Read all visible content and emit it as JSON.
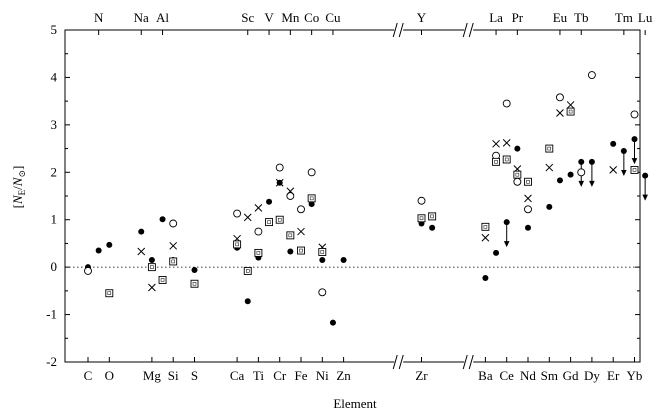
{
  "chart_data": {
    "type": "scatter",
    "title": "",
    "xlabel": "Element",
    "ylabel": "[N_E/N_⊙]",
    "ylabel_parts": {
      "N": "N",
      "E": "E",
      "slash": "/",
      "sun": "⊙"
    },
    "ylim": [
      -2,
      5
    ],
    "yticks": [
      -2,
      -1,
      0,
      1,
      2,
      3,
      4,
      5
    ],
    "reference_line_y": 0,
    "grid": false,
    "legend": "none",
    "axis_break_after": 14,
    "bottom_labels": [
      {
        "pos": 0,
        "label": "C"
      },
      {
        "pos": 1,
        "label": "O"
      },
      {
        "pos": 3,
        "label": "Mg"
      },
      {
        "pos": 4,
        "label": "Si"
      },
      {
        "pos": 5,
        "label": "S"
      },
      {
        "pos": 7,
        "label": "Ca"
      },
      {
        "pos": 8,
        "label": "Ti"
      },
      {
        "pos": 9,
        "label": "Cr"
      },
      {
        "pos": 10,
        "label": "Fe"
      },
      {
        "pos": 11,
        "label": "Ni"
      },
      {
        "pos": 12,
        "label": "Zn"
      },
      {
        "pos": 15,
        "label": "Zr"
      },
      {
        "pos": 18,
        "label": "Ba"
      },
      {
        "pos": 19,
        "label": "Ce"
      },
      {
        "pos": 20,
        "label": "Nd"
      },
      {
        "pos": 21,
        "label": "Sm"
      },
      {
        "pos": 22,
        "label": "Gd"
      },
      {
        "pos": 23,
        "label": "Dy"
      },
      {
        "pos": 24,
        "label": "Er"
      },
      {
        "pos": 25,
        "label": "Yb"
      }
    ],
    "top_labels": [
      {
        "pos": 0.5,
        "label": "N"
      },
      {
        "pos": 2.5,
        "label": "Na"
      },
      {
        "pos": 3.5,
        "label": "Al"
      },
      {
        "pos": 7.5,
        "label": "Sc"
      },
      {
        "pos": 8.5,
        "label": "V"
      },
      {
        "pos": 9.5,
        "label": "Mn"
      },
      {
        "pos": 10.5,
        "label": "Co"
      },
      {
        "pos": 11.5,
        "label": "Cu"
      },
      {
        "pos": 15,
        "label": "Y"
      },
      {
        "pos": 18.5,
        "label": "La"
      },
      {
        "pos": 19.5,
        "label": "Pr"
      },
      {
        "pos": 21.5,
        "label": "Eu"
      },
      {
        "pos": 22.5,
        "label": "Tb"
      },
      {
        "pos": 24.5,
        "label": "Tm"
      },
      {
        "pos": 25.5,
        "label": "Lu"
      }
    ],
    "series": [
      {
        "marker": "filled-circle",
        "points": [
          {
            "x": 0,
            "y": 0.0
          },
          {
            "x": 0.5,
            "y": 0.35
          },
          {
            "x": 1,
            "y": 0.47
          },
          {
            "x": 2.5,
            "y": 0.75
          },
          {
            "x": 3,
            "y": 0.15
          },
          {
            "x": 3.5,
            "y": 1.01
          },
          {
            "x": 4,
            "y": 0.15
          },
          {
            "x": 5,
            "y": -0.06
          },
          {
            "x": 7,
            "y": 0.41
          },
          {
            "x": 7.5,
            "y": -0.72
          },
          {
            "x": 8,
            "y": 0.2
          },
          {
            "x": 8.5,
            "y": 1.38
          },
          {
            "x": 9,
            "y": 1.78
          },
          {
            "x": 9.5,
            "y": 0.33
          },
          {
            "x": 10,
            "y": 0.33
          },
          {
            "x": 10.5,
            "y": 1.33
          },
          {
            "x": 11,
            "y": 0.15
          },
          {
            "x": 11.5,
            "y": -1.17
          },
          {
            "x": 12,
            "y": 0.15
          },
          {
            "x": 15,
            "y": 0.92
          },
          {
            "x": 15.5,
            "y": 0.83
          },
          {
            "x": 18,
            "y": -0.23
          },
          {
            "x": 18.5,
            "y": 0.3
          },
          {
            "x": 19,
            "y": 0.95,
            "upper_limit": true
          },
          {
            "x": 19.5,
            "y": 2.5
          },
          {
            "x": 20,
            "y": 0.83
          },
          {
            "x": 21,
            "y": 1.27
          },
          {
            "x": 21.5,
            "y": 1.83
          },
          {
            "x": 22,
            "y": 1.95
          },
          {
            "x": 22.5,
            "y": 2.22,
            "upper_limit": true
          },
          {
            "x": 23,
            "y": 2.22,
            "upper_limit": true
          },
          {
            "x": 24,
            "y": 2.6
          },
          {
            "x": 24.5,
            "y": 2.45,
            "upper_limit": true
          },
          {
            "x": 25,
            "y": 2.7,
            "upper_limit": true
          },
          {
            "x": 25.5,
            "y": 1.93,
            "upper_limit": true
          }
        ]
      },
      {
        "marker": "open-circle",
        "points": [
          {
            "x": 0,
            "y": -0.08
          },
          {
            "x": 4,
            "y": 0.92
          },
          {
            "x": 7,
            "y": 1.13
          },
          {
            "x": 8,
            "y": 0.75
          },
          {
            "x": 9,
            "y": 2.1
          },
          {
            "x": 9.5,
            "y": 1.5
          },
          {
            "x": 10,
            "y": 1.22
          },
          {
            "x": 10.5,
            "y": 2.0
          },
          {
            "x": 11,
            "y": -0.53
          },
          {
            "x": 15,
            "y": 1.4
          },
          {
            "x": 18.5,
            "y": 2.35
          },
          {
            "x": 19,
            "y": 3.45
          },
          {
            "x": 19.5,
            "y": 1.8
          },
          {
            "x": 20,
            "y": 1.22
          },
          {
            "x": 21.5,
            "y": 3.58
          },
          {
            "x": 22.5,
            "y": 2.0
          },
          {
            "x": 23,
            "y": 4.05
          },
          {
            "x": 25,
            "y": 3.22
          }
        ]
      },
      {
        "marker": "cross",
        "points": [
          {
            "x": 2.5,
            "y": 0.33
          },
          {
            "x": 3,
            "y": -0.43
          },
          {
            "x": 4,
            "y": 0.45
          },
          {
            "x": 7,
            "y": 0.6
          },
          {
            "x": 7.5,
            "y": 1.05
          },
          {
            "x": 8,
            "y": 1.25
          },
          {
            "x": 9,
            "y": 1.78
          },
          {
            "x": 9.5,
            "y": 1.6
          },
          {
            "x": 10,
            "y": 0.75
          },
          {
            "x": 11,
            "y": 0.42
          },
          {
            "x": 15.5,
            "y": 1.08
          },
          {
            "x": 18,
            "y": 0.62
          },
          {
            "x": 18.5,
            "y": 2.6
          },
          {
            "x": 19,
            "y": 2.62
          },
          {
            "x": 19.5,
            "y": 2.07
          },
          {
            "x": 20,
            "y": 1.45
          },
          {
            "x": 21,
            "y": 2.1
          },
          {
            "x": 21.5,
            "y": 3.25
          },
          {
            "x": 22,
            "y": 3.42
          },
          {
            "x": 24,
            "y": 2.05
          }
        ]
      },
      {
        "marker": "boxed-dot",
        "points": [
          {
            "x": 1,
            "y": -0.55
          },
          {
            "x": 3,
            "y": 0.0
          },
          {
            "x": 3.5,
            "y": -0.27
          },
          {
            "x": 4,
            "y": 0.12
          },
          {
            "x": 5,
            "y": -0.35
          },
          {
            "x": 7,
            "y": 0.48
          },
          {
            "x": 7.5,
            "y": -0.08
          },
          {
            "x": 8,
            "y": 0.3
          },
          {
            "x": 8.5,
            "y": 0.95
          },
          {
            "x": 9,
            "y": 1.0
          },
          {
            "x": 9.5,
            "y": 0.67
          },
          {
            "x": 10,
            "y": 0.35
          },
          {
            "x": 10.5,
            "y": 1.45
          },
          {
            "x": 11,
            "y": 0.32
          },
          {
            "x": 15,
            "y": 1.03
          },
          {
            "x": 15.5,
            "y": 1.07
          },
          {
            "x": 18,
            "y": 0.85
          },
          {
            "x": 18.5,
            "y": 2.22
          },
          {
            "x": 19,
            "y": 2.27
          },
          {
            "x": 19.5,
            "y": 1.95
          },
          {
            "x": 20,
            "y": 1.8
          },
          {
            "x": 21,
            "y": 2.5
          },
          {
            "x": 22,
            "y": 3.28
          },
          {
            "x": 25,
            "y": 2.05
          }
        ]
      }
    ]
  }
}
